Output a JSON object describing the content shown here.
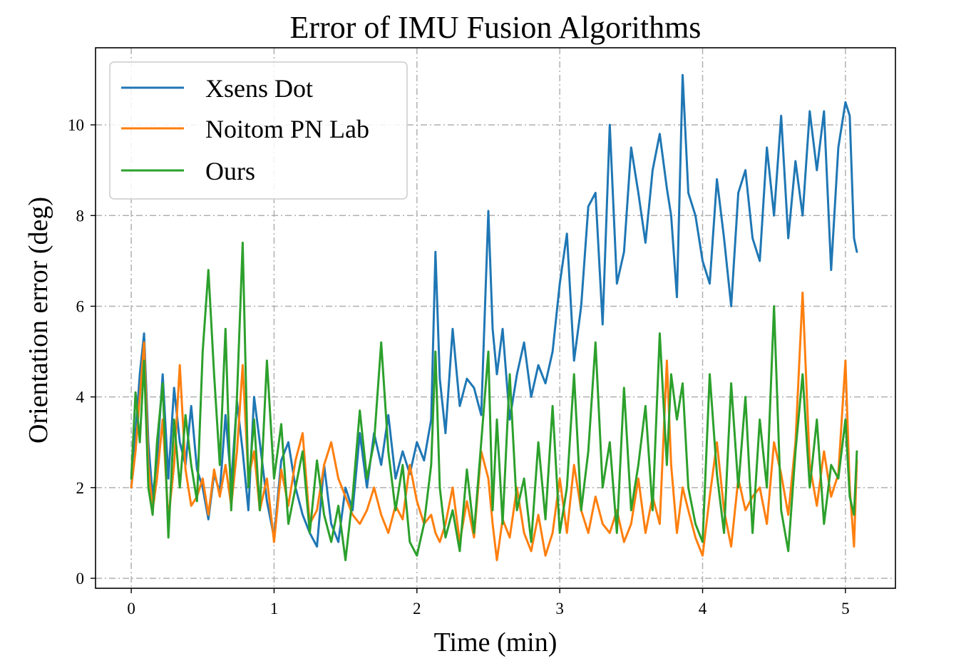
{
  "chart_data": {
    "type": "line",
    "title": "Error of IMU Fusion Algorithms",
    "xlabel": "Time (min)",
    "ylabel": "Orientation error (deg)",
    "xlim": [
      -0.25,
      5.35
    ],
    "ylim": [
      -0.22,
      11.7
    ],
    "xticks": [
      0,
      1,
      2,
      3,
      4,
      5
    ],
    "yticks": [
      0,
      2,
      4,
      6,
      8,
      10
    ],
    "grid": true,
    "legend_position": "top-left",
    "series": [
      {
        "name": "Xsens Dot",
        "color": "#1f77b4",
        "x": [
          0,
          0.03,
          0.06,
          0.09,
          0.12,
          0.15,
          0.18,
          0.22,
          0.26,
          0.3,
          0.34,
          0.38,
          0.42,
          0.46,
          0.5,
          0.54,
          0.58,
          0.62,
          0.66,
          0.7,
          0.74,
          0.78,
          0.82,
          0.86,
          0.9,
          0.95,
          1.0,
          1.05,
          1.1,
          1.15,
          1.2,
          1.25,
          1.3,
          1.35,
          1.4,
          1.45,
          1.5,
          1.55,
          1.6,
          1.65,
          1.7,
          1.75,
          1.8,
          1.85,
          1.9,
          1.95,
          2.0,
          2.05,
          2.1,
          2.13,
          2.16,
          2.2,
          2.25,
          2.3,
          2.35,
          2.4,
          2.45,
          2.5,
          2.53,
          2.56,
          2.6,
          2.65,
          2.7,
          2.75,
          2.8,
          2.85,
          2.9,
          2.95,
          3.0,
          3.05,
          3.1,
          3.15,
          3.2,
          3.25,
          3.3,
          3.35,
          3.4,
          3.45,
          3.5,
          3.55,
          3.6,
          3.65,
          3.7,
          3.75,
          3.78,
          3.82,
          3.86,
          3.9,
          3.95,
          4.0,
          4.05,
          4.1,
          4.15,
          4.2,
          4.25,
          4.3,
          4.35,
          4.4,
          4.45,
          4.5,
          4.55,
          4.6,
          4.65,
          4.7,
          4.75,
          4.8,
          4.85,
          4.9,
          4.95,
          5.0,
          5.03,
          5.06,
          5.08
        ],
        "values": [
          2.0,
          3.2,
          4.5,
          5.4,
          3.0,
          1.8,
          2.6,
          4.5,
          2.2,
          4.2,
          3.0,
          2.5,
          3.8,
          2.4,
          2.0,
          1.3,
          2.3,
          1.9,
          3.6,
          2.1,
          3.9,
          2.8,
          1.5,
          4.0,
          3.0,
          1.7,
          0.9,
          2.6,
          3.0,
          2.0,
          1.4,
          1.0,
          0.7,
          2.5,
          1.2,
          0.8,
          2.0,
          1.5,
          3.2,
          2.0,
          3.2,
          2.5,
          3.6,
          2.2,
          2.8,
          2.3,
          3.0,
          2.6,
          3.5,
          7.2,
          4.4,
          3.2,
          5.5,
          3.8,
          4.4,
          4.2,
          3.6,
          8.1,
          5.5,
          4.5,
          5.5,
          3.5,
          4.5,
          5.2,
          4.0,
          4.7,
          4.3,
          5.0,
          6.5,
          7.6,
          4.8,
          6.0,
          8.2,
          8.5,
          5.6,
          10.0,
          6.5,
          7.2,
          9.5,
          8.5,
          7.4,
          9.0,
          9.8,
          8.6,
          8.0,
          6.2,
          11.1,
          8.5,
          8.0,
          7.0,
          6.5,
          8.8,
          7.5,
          6.0,
          8.5,
          9.0,
          7.5,
          7.0,
          9.5,
          8.0,
          10.2,
          7.5,
          9.2,
          8.0,
          10.3,
          9.0,
          10.3,
          6.8,
          9.5,
          10.5,
          10.2,
          7.5,
          7.2
        ]
      },
      {
        "name": "Noitom PN Lab",
        "color": "#ff7f0e",
        "x": [
          0,
          0.03,
          0.06,
          0.09,
          0.12,
          0.15,
          0.18,
          0.22,
          0.26,
          0.3,
          0.34,
          0.38,
          0.42,
          0.46,
          0.5,
          0.54,
          0.58,
          0.62,
          0.66,
          0.7,
          0.74,
          0.78,
          0.82,
          0.86,
          0.9,
          0.95,
          1.0,
          1.05,
          1.1,
          1.15,
          1.2,
          1.25,
          1.3,
          1.35,
          1.4,
          1.45,
          1.5,
          1.55,
          1.6,
          1.65,
          1.7,
          1.75,
          1.8,
          1.85,
          1.9,
          1.95,
          2.0,
          2.05,
          2.1,
          2.13,
          2.16,
          2.2,
          2.25,
          2.3,
          2.35,
          2.4,
          2.45,
          2.5,
          2.53,
          2.56,
          2.6,
          2.65,
          2.7,
          2.75,
          2.8,
          2.85,
          2.9,
          2.95,
          3.0,
          3.05,
          3.1,
          3.15,
          3.2,
          3.25,
          3.3,
          3.35,
          3.4,
          3.45,
          3.5,
          3.55,
          3.6,
          3.65,
          3.7,
          3.75,
          3.78,
          3.82,
          3.86,
          3.9,
          3.95,
          4.0,
          4.05,
          4.1,
          4.15,
          4.2,
          4.25,
          4.3,
          4.35,
          4.4,
          4.45,
          4.5,
          4.55,
          4.6,
          4.65,
          4.7,
          4.75,
          4.8,
          4.85,
          4.9,
          4.95,
          5.0,
          5.03,
          5.06,
          5.08
        ],
        "values": [
          2.0,
          2.8,
          4.0,
          5.2,
          2.5,
          1.5,
          2.2,
          3.5,
          1.3,
          2.5,
          4.7,
          2.4,
          1.6,
          1.8,
          2.2,
          1.4,
          2.4,
          1.8,
          2.5,
          1.6,
          2.8,
          4.7,
          2.2,
          2.8,
          1.5,
          2.2,
          0.8,
          2.4,
          1.6,
          2.6,
          3.2,
          1.2,
          1.5,
          2.5,
          3.0,
          2.2,
          1.8,
          1.4,
          1.2,
          1.5,
          2.0,
          1.4,
          1.0,
          1.6,
          1.3,
          2.5,
          1.7,
          1.2,
          1.4,
          1.0,
          0.8,
          1.2,
          2.0,
          0.8,
          1.7,
          0.9,
          2.8,
          2.2,
          1.2,
          0.4,
          1.3,
          0.9,
          2.0,
          1.0,
          0.6,
          1.4,
          0.5,
          1.0,
          2.2,
          1.0,
          2.5,
          1.5,
          1.0,
          1.8,
          1.2,
          1.0,
          1.5,
          0.8,
          1.2,
          2.2,
          1.0,
          1.8,
          1.2,
          4.8,
          2.5,
          1.0,
          2.0,
          1.5,
          0.9,
          0.5,
          1.8,
          3.0,
          1.5,
          0.7,
          2.2,
          1.5,
          1.8,
          2.0,
          1.2,
          3.0,
          2.3,
          1.4,
          3.0,
          6.3,
          2.5,
          1.6,
          2.8,
          1.8,
          2.3,
          4.8,
          2.0,
          0.7,
          2.6
        ]
      },
      {
        "name": "Ours",
        "color": "#2ca02c",
        "x": [
          0,
          0.03,
          0.06,
          0.09,
          0.12,
          0.15,
          0.18,
          0.22,
          0.26,
          0.3,
          0.34,
          0.38,
          0.42,
          0.46,
          0.5,
          0.54,
          0.58,
          0.62,
          0.66,
          0.7,
          0.74,
          0.78,
          0.82,
          0.86,
          0.9,
          0.95,
          1.0,
          1.05,
          1.1,
          1.15,
          1.2,
          1.25,
          1.3,
          1.35,
          1.4,
          1.45,
          1.5,
          1.55,
          1.6,
          1.65,
          1.7,
          1.75,
          1.8,
          1.85,
          1.9,
          1.95,
          2.0,
          2.05,
          2.1,
          2.13,
          2.16,
          2.2,
          2.25,
          2.3,
          2.35,
          2.4,
          2.45,
          2.5,
          2.53,
          2.56,
          2.6,
          2.65,
          2.7,
          2.75,
          2.8,
          2.85,
          2.9,
          2.95,
          3.0,
          3.05,
          3.1,
          3.15,
          3.2,
          3.25,
          3.3,
          3.35,
          3.4,
          3.45,
          3.5,
          3.55,
          3.6,
          3.65,
          3.7,
          3.75,
          3.78,
          3.82,
          3.86,
          3.9,
          3.95,
          4.0,
          4.05,
          4.1,
          4.15,
          4.2,
          4.25,
          4.3,
          4.35,
          4.4,
          4.45,
          4.5,
          4.55,
          4.6,
          4.65,
          4.7,
          4.75,
          4.8,
          4.85,
          4.9,
          4.95,
          5.0,
          5.03,
          5.06,
          5.08
        ],
        "values": [
          2.2,
          4.1,
          3.0,
          4.8,
          2.0,
          1.4,
          3.0,
          4.3,
          0.9,
          3.5,
          2.0,
          3.6,
          2.5,
          1.7,
          5.0,
          6.8,
          4.5,
          2.5,
          5.5,
          1.5,
          4.0,
          7.4,
          2.0,
          3.5,
          1.5,
          4.8,
          2.2,
          3.4,
          1.2,
          2.0,
          2.8,
          1.0,
          2.6,
          1.4,
          0.8,
          1.6,
          0.4,
          1.8,
          3.7,
          2.2,
          3.0,
          5.2,
          2.8,
          1.5,
          2.5,
          0.8,
          0.5,
          1.2,
          2.5,
          5.0,
          2.0,
          0.9,
          1.5,
          0.6,
          2.4,
          1.0,
          3.0,
          5.0,
          1.5,
          3.5,
          1.2,
          4.5,
          1.5,
          2.2,
          0.8,
          3.0,
          1.3,
          3.8,
          1.0,
          2.0,
          4.5,
          1.5,
          2.8,
          5.2,
          2.0,
          3.0,
          1.0,
          4.2,
          1.5,
          2.5,
          3.8,
          1.5,
          5.4,
          2.5,
          4.5,
          3.5,
          4.3,
          2.0,
          1.2,
          0.8,
          4.5,
          2.3,
          1.0,
          4.3,
          2.0,
          4.0,
          1.0,
          3.5,
          2.0,
          6.0,
          1.5,
          0.6,
          2.8,
          4.5,
          2.0,
          3.5,
          1.2,
          2.5,
          2.2,
          3.5,
          1.8,
          1.4,
          2.8
        ]
      }
    ]
  }
}
